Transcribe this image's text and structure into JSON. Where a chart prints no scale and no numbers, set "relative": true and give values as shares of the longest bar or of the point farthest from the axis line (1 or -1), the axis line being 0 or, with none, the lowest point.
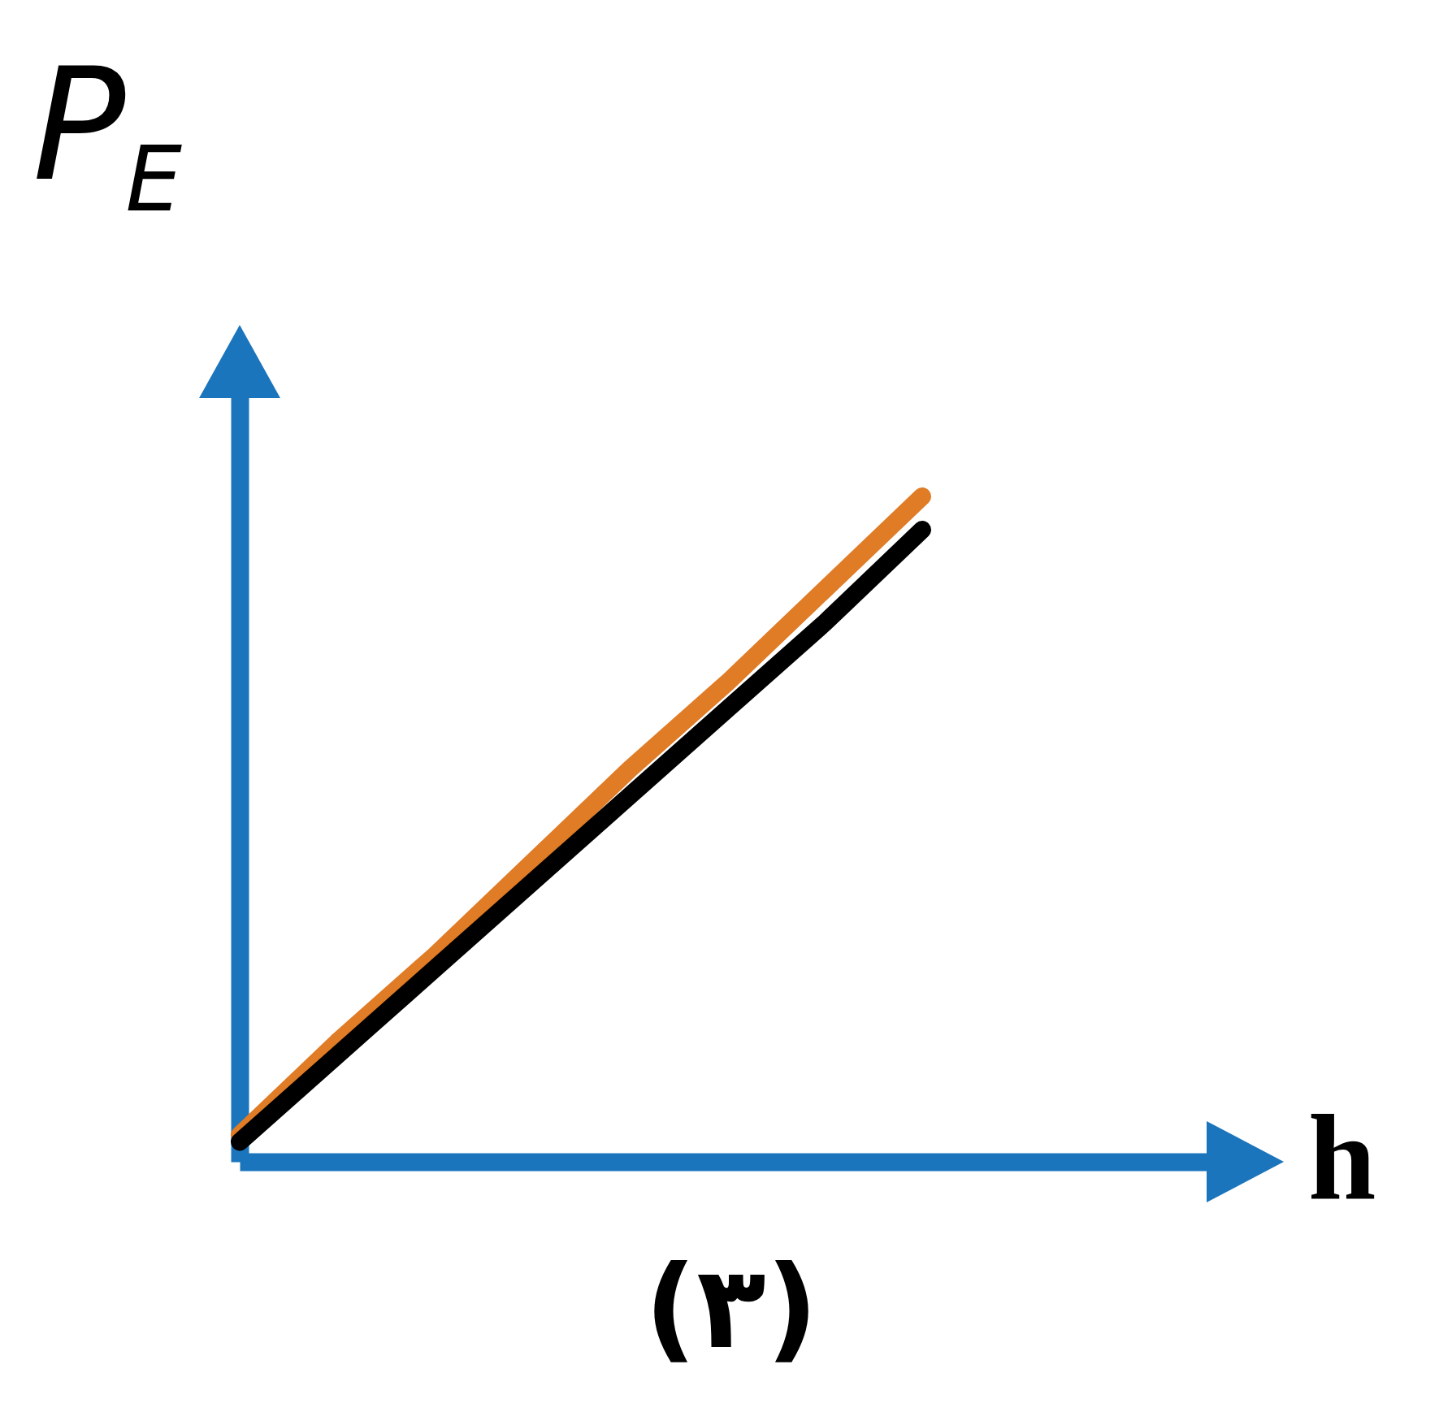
{
  "chart_data": {
    "type": "line",
    "relative": true,
    "line_style": "solid",
    "xlabel": "h",
    "ylabel": "P$_{E}$",
    "annotations": [
      "(۳)"
    ],
    "categories": [
      null,
      null,
      null,
      null,
      null,
      null,
      null,
      null,
      null,
      null,
      null
    ],
    "series": [
      {
        "color": "#e07b26",
        "values": [
          0.04,
          0.18,
          0.31,
          0.45,
          0.59,
          0.72,
          0.86,
          1,
          null,
          null,
          null
        ]
      },
      {
        "color": "#000000",
        "values": [
          0.03,
          0.16,
          0.29,
          0.42,
          0.55,
          0.68,
          0.81,
          0.95,
          null,
          null,
          null
        ]
      }
    ]
  }
}
